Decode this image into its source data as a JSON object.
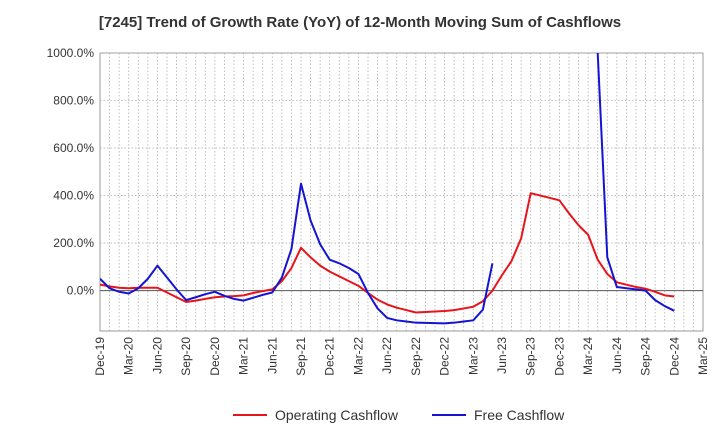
{
  "chart_data": {
    "type": "line",
    "title": "[7245]  Trend of Growth Rate (YoY) of 12-Month Moving Sum of Cashflows",
    "xlabel": "",
    "ylabel": "",
    "ylim": [
      -170,
      1000
    ],
    "y_ticks": [
      0,
      200,
      400,
      600,
      800,
      1000
    ],
    "y_tick_labels": [
      "0.0%",
      "200.0%",
      "400.0%",
      "600.0%",
      "800.0%",
      "1000.0%"
    ],
    "x_tick_labels": [
      "Dec-19",
      "Mar-20",
      "Jun-20",
      "Sep-20",
      "Dec-20",
      "Mar-21",
      "Jun-21",
      "Sep-21",
      "Dec-21",
      "Mar-22",
      "Jun-22",
      "Sep-22",
      "Dec-22",
      "Mar-23",
      "Jun-23",
      "Sep-23",
      "Dec-23",
      "Mar-24",
      "Jun-24",
      "Sep-24",
      "Dec-24",
      "Mar-25"
    ],
    "x": [
      "Dec-19",
      "Jan-20",
      "Feb-20",
      "Mar-20",
      "Apr-20",
      "May-20",
      "Jun-20",
      "Jul-20",
      "Aug-20",
      "Sep-20",
      "Oct-20",
      "Nov-20",
      "Dec-20",
      "Jan-21",
      "Feb-21",
      "Mar-21",
      "Apr-21",
      "May-21",
      "Jun-21",
      "Jul-21",
      "Aug-21",
      "Sep-21",
      "Oct-21",
      "Nov-21",
      "Dec-21",
      "Jan-22",
      "Feb-22",
      "Mar-22",
      "Apr-22",
      "May-22",
      "Jun-22",
      "Jul-22",
      "Aug-22",
      "Sep-22",
      "Oct-22",
      "Nov-22",
      "Dec-22",
      "Jan-23",
      "Feb-23",
      "Mar-23",
      "Apr-23",
      "May-23",
      "Jun-23",
      "Jul-23",
      "Aug-23",
      "Sep-23",
      "Oct-23",
      "Nov-23",
      "Dec-23",
      "Jan-24",
      "Feb-24",
      "Mar-24",
      "Apr-24",
      "May-24",
      "Jun-24",
      "Jul-24",
      "Aug-24",
      "Sep-24",
      "Oct-24",
      "Nov-24",
      "Dec-24"
    ],
    "grid": true,
    "legend_position": "bottom",
    "series": [
      {
        "name": "Operating Cashflow",
        "color": "#e8141b",
        "values": [
          25,
          18,
          12,
          10,
          12,
          12,
          12,
          -8,
          -28,
          -48,
          -42,
          -35,
          -28,
          -25,
          -23,
          -20,
          -10,
          -2,
          5,
          40,
          95,
          180,
          140,
          105,
          80,
          60,
          40,
          20,
          -10,
          -38,
          -58,
          -72,
          -82,
          -92,
          -90,
          -88,
          -86,
          -82,
          -75,
          -68,
          -45,
          0,
          65,
          125,
          220,
          410,
          400,
          390,
          380,
          325,
          275,
          235,
          130,
          70,
          35,
          25,
          15,
          8,
          -5,
          -20,
          -25
        ]
      },
      {
        "name": "Free Cashflow",
        "color": "#1414d2",
        "values": [
          50,
          10,
          -5,
          -12,
          10,
          50,
          105,
          55,
          5,
          -40,
          -28,
          -15,
          -5,
          -22,
          -35,
          -42,
          -30,
          -18,
          -8,
          55,
          175,
          450,
          295,
          195,
          130,
          115,
          95,
          70,
          -10,
          -75,
          -115,
          -125,
          -130,
          -135,
          -136,
          -137,
          -138,
          -135,
          -130,
          -125,
          -80,
          115,
          null,
          null,
          null,
          null,
          null,
          null,
          null,
          null,
          null,
          null,
          1000,
          140,
          15,
          10,
          5,
          0,
          -40,
          -65,
          -85
        ]
      }
    ]
  }
}
